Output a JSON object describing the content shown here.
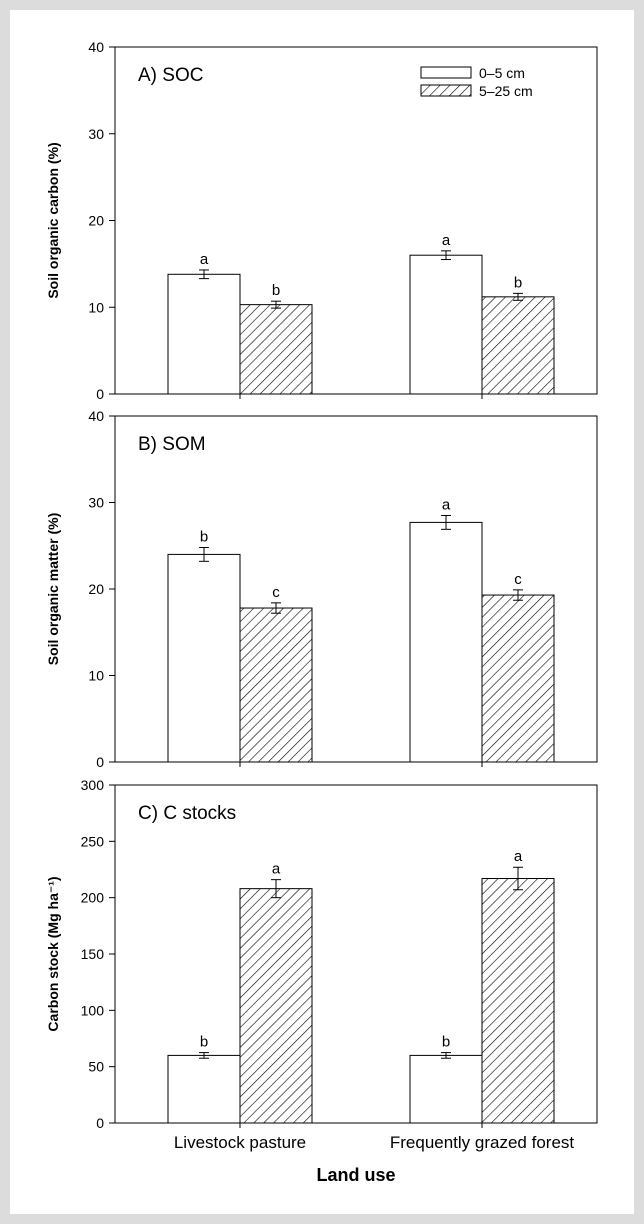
{
  "colors": {
    "bar_open": "#ffffff",
    "bar_hatch": "#000000",
    "page_border": "#dcdcdc"
  },
  "chart_data": [
    {
      "type": "bar",
      "panel": "A) SOC",
      "ylabel": "Soil organic carbon (%)",
      "ylim": [
        0,
        40
      ],
      "yticks": [
        0,
        10,
        20,
        30,
        40
      ],
      "categories": [
        "Livestock pasture",
        "Frequently grazed forest"
      ],
      "legend": {
        "placement": "top-right",
        "entries": [
          "0–5 cm",
          "5–25 cm"
        ]
      },
      "series": [
        {
          "name": "0–5 cm",
          "pattern": "open",
          "values": [
            13.8,
            16.0
          ],
          "errors": [
            0.5,
            0.5
          ],
          "letters": [
            "a",
            "a"
          ]
        },
        {
          "name": "5–25 cm",
          "pattern": "hatched",
          "values": [
            10.3,
            11.2
          ],
          "errors": [
            0.4,
            0.4
          ],
          "letters": [
            "b",
            "b"
          ]
        }
      ]
    },
    {
      "type": "bar",
      "panel": "B) SOM",
      "ylabel": "Soil organic matter (%)",
      "ylim": [
        0,
        40
      ],
      "yticks": [
        0,
        10,
        20,
        30,
        40
      ],
      "categories": [
        "Livestock pasture",
        "Frequently grazed forest"
      ],
      "series": [
        {
          "name": "0–5 cm",
          "pattern": "open",
          "values": [
            24.0,
            27.7
          ],
          "errors": [
            0.8,
            0.8
          ],
          "letters": [
            "b",
            "a"
          ]
        },
        {
          "name": "5–25 cm",
          "pattern": "hatched",
          "values": [
            17.8,
            19.3
          ],
          "errors": [
            0.6,
            0.6
          ],
          "letters": [
            "c",
            "c"
          ]
        }
      ]
    },
    {
      "type": "bar",
      "panel": "C) C stocks",
      "ylabel": "Carbon stock (Mg ha⁻¹)",
      "ylim": [
        0,
        300
      ],
      "yticks": [
        0,
        50,
        100,
        150,
        200,
        250,
        300
      ],
      "categories": [
        "Livestock pasture",
        "Frequently grazed forest"
      ],
      "xlabel": "Land use",
      "series": [
        {
          "name": "0–5 cm",
          "pattern": "open",
          "values": [
            60,
            60
          ],
          "errors": [
            2.5,
            2.5
          ],
          "letters": [
            "b",
            "b"
          ]
        },
        {
          "name": "5–25 cm",
          "pattern": "hatched",
          "values": [
            208,
            217
          ],
          "errors": [
            8,
            10
          ],
          "letters": [
            "a",
            "a"
          ]
        }
      ]
    }
  ]
}
